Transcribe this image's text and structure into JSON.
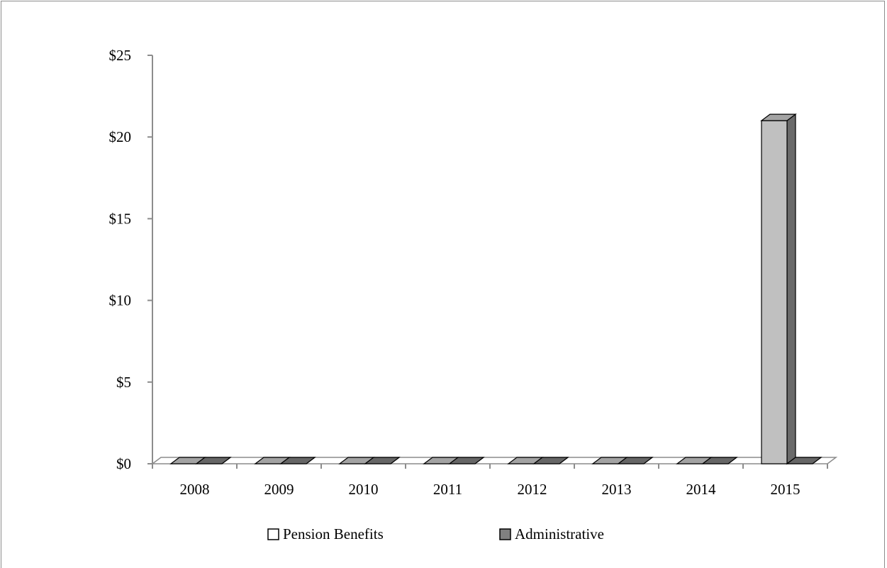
{
  "chart_data": {
    "type": "bar",
    "title": "",
    "xlabel": "",
    "ylabel": "",
    "categories": [
      "2008",
      "2009",
      "2010",
      "2011",
      "2012",
      "2013",
      "2014",
      "2015"
    ],
    "series": [
      {
        "name": "Pension Benefits",
        "values": [
          0,
          0,
          0,
          0,
          0,
          0,
          0,
          21
        ],
        "color": "#c0c0c0"
      },
      {
        "name": "Administrative",
        "values": [
          0,
          0,
          0,
          0,
          0,
          0,
          0,
          0
        ],
        "color": "#808080"
      }
    ],
    "ylim": [
      0,
      25
    ],
    "yticks": [
      0,
      5,
      10,
      15,
      20,
      25
    ],
    "ytick_labels": [
      "$0",
      "$5",
      "$10",
      "$15",
      "$20",
      "$25"
    ],
    "grid": false,
    "legend_position": "bottom",
    "style": "3d-column"
  }
}
